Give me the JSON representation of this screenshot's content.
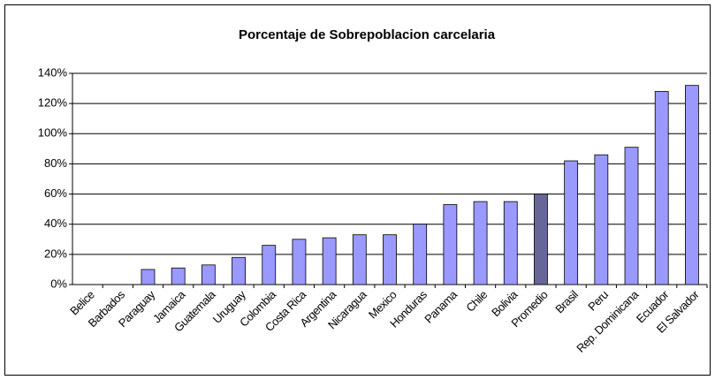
{
  "chart_data": {
    "type": "bar",
    "title": "Porcentaje de Sobrepoblacion carcelaria",
    "categories": [
      "Belice",
      "Barbados",
      "Paraguay",
      "Jamaica",
      "Guatemala",
      "Uruguay",
      "Colombia",
      "Costa Rica",
      "Argentina",
      "Nicaragua",
      "Mexico",
      "Honduras",
      "Panama",
      "Chile",
      "Bolivia",
      "Promedio",
      "Brasil",
      "Peru",
      "Rep. Dominicana",
      "Ecuador",
      "El Salvador"
    ],
    "values": [
      0,
      0,
      10,
      11,
      13,
      18,
      26,
      30,
      31,
      33,
      33,
      40,
      53,
      55,
      55,
      60,
      82,
      86,
      91,
      128,
      132
    ],
    "colors": [
      "#9999ff",
      "#9999ff",
      "#9999ff",
      "#9999ff",
      "#9999ff",
      "#9999ff",
      "#9999ff",
      "#9999ff",
      "#9999ff",
      "#9999ff",
      "#9999ff",
      "#9999ff",
      "#9999ff",
      "#9999ff",
      "#9999ff",
      "#666699",
      "#9999ff",
      "#9999ff",
      "#9999ff",
      "#9999ff",
      "#9999ff"
    ],
    "ylim": [
      0,
      140
    ],
    "yticks": [
      {
        "value": 0,
        "label": "0%"
      },
      {
        "value": 20,
        "label": "20%"
      },
      {
        "value": 40,
        "label": "40%"
      },
      {
        "value": 60,
        "label": "60%"
      },
      {
        "value": 80,
        "label": "80%"
      },
      {
        "value": 100,
        "label": "100%"
      },
      {
        "value": 120,
        "label": "120%"
      },
      {
        "value": 140,
        "label": "140%"
      }
    ],
    "grid": true
  }
}
